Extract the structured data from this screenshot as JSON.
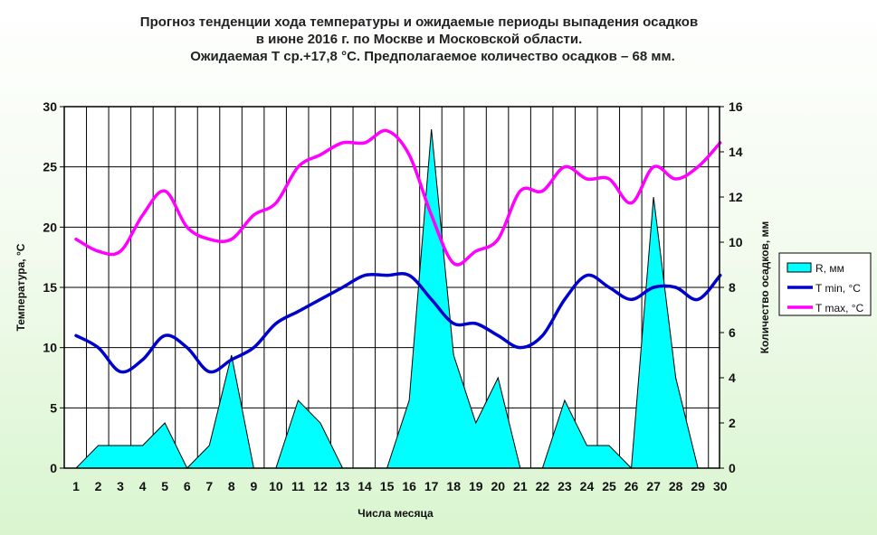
{
  "chart_data": {
    "type": "line",
    "title_lines": [
      "Прогноз тенденции хода температуры и ожидаемые периоды выпадения осадков",
      "в июне 2016 г. по Москве и Московской области.",
      "Ожидаемая Т ср.+17,8 °С. Предполагаемое количество осадков – 68 мм."
    ],
    "xlabel": "Числа месяца",
    "ylabel": "Температура, °С",
    "y2label": "Количество осадков, мм",
    "x": [
      1,
      2,
      3,
      4,
      5,
      6,
      7,
      8,
      9,
      10,
      11,
      12,
      13,
      14,
      15,
      16,
      17,
      18,
      19,
      20,
      21,
      22,
      23,
      24,
      25,
      26,
      27,
      28,
      29,
      30
    ],
    "ylim": [
      0,
      30
    ],
    "yticks": [
      0,
      5,
      10,
      15,
      20,
      25,
      30
    ],
    "y2lim": [
      0,
      16
    ],
    "y2ticks": [
      0,
      2,
      4,
      6,
      8,
      10,
      12,
      14,
      16
    ],
    "grid": true,
    "legend_position": "right",
    "series": [
      {
        "name": "R, мм",
        "kind": "area",
        "axis": "right",
        "color": "#00ffff",
        "stroke": "#000000",
        "values": [
          0,
          1,
          1,
          1,
          2,
          0,
          1,
          5,
          0,
          0,
          3,
          2,
          0,
          0,
          0,
          3,
          15,
          5,
          2,
          4,
          0,
          0,
          3,
          1,
          1,
          0,
          12,
          4,
          0,
          null
        ]
      },
      {
        "name": "T min, °С",
        "kind": "line",
        "axis": "left",
        "color": "#0000cc",
        "values": [
          11,
          10,
          8,
          9,
          11,
          10,
          8,
          9,
          10,
          12,
          13,
          14,
          15,
          16,
          16,
          16,
          14,
          12,
          12,
          11,
          10,
          11,
          14,
          16,
          15,
          14,
          15,
          15,
          14,
          16
        ]
      },
      {
        "name": "T max, °С",
        "kind": "line",
        "axis": "left",
        "color": "#ff00ff",
        "values": [
          19,
          18,
          18,
          21,
          23,
          20,
          19,
          19,
          21,
          22,
          25,
          26,
          27,
          27,
          28,
          26,
          21,
          17,
          18,
          19,
          23,
          23,
          25,
          24,
          24,
          22,
          25,
          24,
          25,
          27
        ]
      }
    ]
  }
}
